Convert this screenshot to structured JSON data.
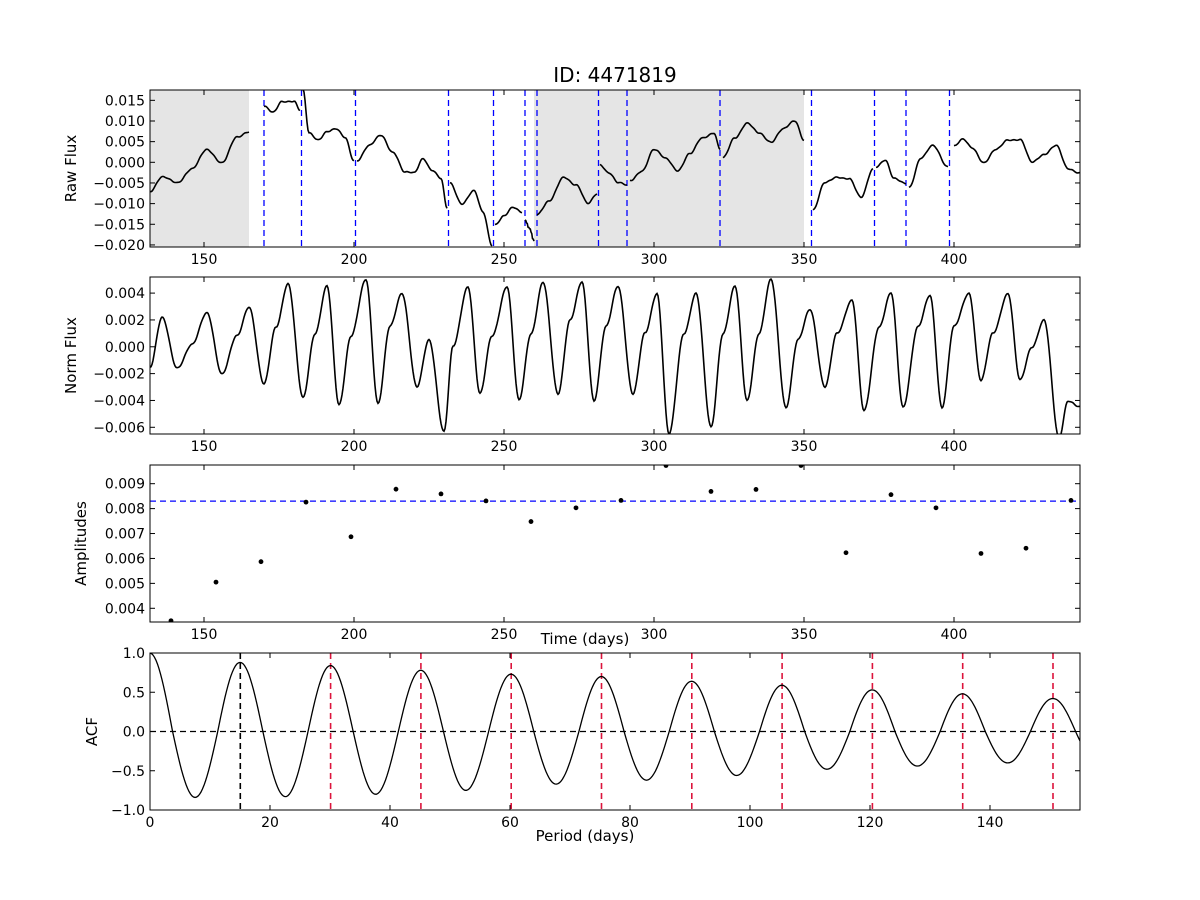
{
  "figure": {
    "title": "ID: 4471819"
  },
  "chart_data": [
    {
      "id": "raw",
      "type": "line",
      "title": "ID: 4471819",
      "xlabel": "",
      "ylabel": "Raw Flux",
      "xlim": [
        132,
        442
      ],
      "ylim": [
        -0.0205,
        0.0175
      ],
      "xticks": [
        150,
        200,
        250,
        300,
        350,
        400
      ],
      "yticks": [
        -0.02,
        -0.015,
        -0.01,
        -0.005,
        0.0,
        0.005,
        0.01,
        0.015
      ],
      "ytick_decimals": 3,
      "shaded_regions": [
        [
          132,
          165
        ],
        [
          260,
          350
        ]
      ],
      "shade_color": "#e5e5e5",
      "vlines": [
        170,
        182.5,
        200.5,
        231.5,
        246.5,
        257,
        261,
        281.5,
        291,
        322,
        352.5,
        373.5,
        384,
        398.5
      ],
      "vline_color": "#0000ff",
      "line_color": "#000000",
      "series": [
        {
          "x": [
            132,
            136,
            141,
            146,
            151,
            156,
            161,
            165
          ],
          "y": [
            -0.007,
            -0.0035,
            -0.005,
            -0.0015,
            0.003,
            0.0,
            0.006,
            0.0075
          ]
        },
        {
          "x": [
            170,
            173,
            176,
            180,
            182
          ],
          "y": [
            0.0135,
            0.012,
            0.0148,
            0.0148,
            0.0125
          ]
        },
        {
          "x": [
            183,
            185,
            188,
            191,
            194,
            197,
            200
          ],
          "y": [
            0.0175,
            0.007,
            0.0055,
            0.0075,
            0.008,
            0.006,
            0.0005
          ]
        },
        {
          "x": [
            201,
            205,
            209,
            213,
            217,
            220,
            223,
            226,
            229,
            231
          ],
          "y": [
            0.0005,
            0.004,
            0.0065,
            0.0025,
            -0.0025,
            -0.0025,
            0.001,
            -0.002,
            -0.004,
            -0.011
          ]
        },
        {
          "x": [
            232,
            236,
            240,
            243,
            246
          ],
          "y": [
            -0.005,
            -0.01,
            -0.007,
            -0.012,
            -0.02
          ]
        },
        {
          "x": [
            247,
            250,
            253,
            256
          ],
          "y": [
            -0.015,
            -0.013,
            -0.011,
            -0.012
          ]
        },
        {
          "x": [
            257,
            258.5,
            260
          ],
          "y": [
            -0.014,
            -0.016,
            -0.019
          ]
        },
        {
          "x": [
            261,
            265,
            270,
            274,
            278,
            281
          ],
          "y": [
            -0.0125,
            -0.0095,
            -0.0035,
            -0.0055,
            -0.01,
            -0.0075
          ]
        },
        {
          "x": [
            282,
            285,
            288,
            291
          ],
          "y": [
            -0.0005,
            -0.0025,
            -0.005,
            -0.0055
          ]
        },
        {
          "x": [
            292,
            296,
            300,
            304,
            308,
            312,
            316,
            320,
            322
          ],
          "y": [
            -0.0045,
            -0.002,
            0.003,
            0.001,
            -0.002,
            0.002,
            0.006,
            0.007,
            0.003
          ]
        },
        {
          "x": [
            323,
            327,
            331,
            335,
            339,
            343,
            347,
            350
          ],
          "y": [
            0.001,
            0.006,
            0.0095,
            0.007,
            0.005,
            0.008,
            0.01,
            0.0055
          ]
        },
        {
          "x": [
            353,
            357,
            361,
            365,
            369,
            373
          ],
          "y": [
            -0.0115,
            -0.005,
            -0.0035,
            -0.004,
            -0.0085,
            -0.0015
          ]
        },
        {
          "x": [
            374,
            377,
            380,
            384
          ],
          "y": [
            -0.001,
            0.0005,
            -0.004,
            -0.005
          ]
        },
        {
          "x": [
            385,
            389,
            393,
            398
          ],
          "y": [
            -0.006,
            0.001,
            0.004,
            -0.001
          ]
        },
        {
          "x": [
            400,
            403,
            406,
            410,
            414,
            418,
            422,
            426,
            430,
            434,
            438,
            442
          ],
          "y": [
            0.004,
            0.0055,
            0.0035,
            0.0,
            0.003,
            0.0055,
            0.0055,
            0.0,
            0.002,
            0.004,
            -0.0015,
            -0.0025
          ]
        }
      ]
    },
    {
      "id": "norm",
      "type": "line",
      "xlabel": "",
      "ylabel": "Norm Flux",
      "xlim": [
        132,
        442
      ],
      "ylim": [
        -0.0065,
        0.0052
      ],
      "xticks": [
        150,
        200,
        250,
        300,
        350,
        400
      ],
      "yticks": [
        -0.006,
        -0.004,
        -0.002,
        0.0,
        0.002,
        0.004
      ],
      "ytick_decimals": 3,
      "line_color": "#000000",
      "series": [
        {
          "x": [
            132,
            136,
            141,
            146,
            151,
            156,
            161,
            165,
            170,
            174,
            178,
            183,
            187,
            191,
            195,
            199,
            204,
            208,
            212,
            216,
            221,
            225,
            230,
            233,
            238,
            242,
            246,
            251,
            255,
            259,
            263,
            268,
            272,
            276,
            280,
            284,
            288,
            293,
            297,
            301,
            305,
            310,
            314,
            319,
            323,
            327,
            331,
            335,
            339,
            344,
            348,
            352,
            357,
            361,
            366,
            370,
            375,
            379,
            383,
            388,
            392,
            396,
            400,
            405,
            409,
            413,
            418,
            422,
            426,
            430,
            435,
            438,
            442
          ],
          "y": [
            -0.0015,
            0.0022,
            -0.0016,
            0.0002,
            0.0025,
            -0.002,
            0.0008,
            0.003,
            -0.0028,
            0.0015,
            0.0047,
            -0.0038,
            0.001,
            0.0045,
            -0.0043,
            0.0008,
            0.005,
            -0.0042,
            0.0015,
            0.004,
            -0.003,
            0.0005,
            -0.0063,
            0.0,
            0.0045,
            -0.0035,
            0.0008,
            0.0045,
            -0.004,
            0.001,
            0.0048,
            -0.0035,
            0.002,
            0.0048,
            -0.004,
            0.0015,
            0.0045,
            -0.0035,
            0.001,
            0.004,
            -0.0065,
            0.001,
            0.004,
            -0.006,
            0.001,
            0.0045,
            -0.004,
            0.001,
            0.005,
            -0.0045,
            0.0005,
            0.0028,
            -0.003,
            0.001,
            0.0035,
            -0.0048,
            0.0015,
            0.004,
            -0.0045,
            0.0015,
            0.0038,
            -0.0045,
            0.0015,
            0.004,
            -0.0025,
            0.001,
            0.004,
            -0.0025,
            0.0,
            0.002,
            -0.0068,
            -0.004,
            -0.0045
          ]
        }
      ]
    },
    {
      "id": "amp",
      "type": "scatter",
      "xlabel": "Time (days)",
      "ylabel": "Amplitudes",
      "xlim": [
        132,
        442
      ],
      "ylim": [
        0.00345,
        0.00975
      ],
      "xticks": [
        150,
        200,
        250,
        300,
        350,
        400
      ],
      "yticks": [
        0.004,
        0.005,
        0.006,
        0.007,
        0.008,
        0.009
      ],
      "ytick_decimals": 3,
      "hline": 0.0083,
      "hline_color": "#0000ff",
      "marker_color": "#000000",
      "x": [
        139,
        154,
        169,
        184,
        199,
        214,
        229,
        244,
        259,
        274,
        289,
        304,
        319,
        334,
        349,
        364,
        379,
        394,
        409,
        424,
        439
      ],
      "y": [
        0.0035,
        0.00505,
        0.00587,
        0.00826,
        0.00687,
        0.00878,
        0.00859,
        0.00831,
        0.00748,
        0.00803,
        0.00833,
        0.00973,
        0.00869,
        0.00877,
        0.00973,
        0.00623,
        0.00856,
        0.00803,
        0.0062,
        0.00641,
        0.00833
      ]
    },
    {
      "id": "acf",
      "type": "line",
      "xlabel": "Period (days)",
      "ylabel": "ACF",
      "xlim": [
        0,
        155
      ],
      "ylim": [
        -1.0,
        1.0
      ],
      "xticks": [
        0,
        20,
        40,
        60,
        80,
        100,
        120,
        140
      ],
      "yticks": [
        -1.0,
        -0.5,
        0.0,
        0.5,
        1.0
      ],
      "ytick_decimals": 1,
      "hline": 0.0,
      "hline_color": "#000000",
      "line_color": "#000000",
      "period": 15.05,
      "peak_lines": [
        15.05,
        30.1,
        45.15,
        60.2,
        75.25,
        90.3,
        105.35,
        120.4,
        135.45,
        150.5
      ],
      "first_peak_color": "#000000",
      "peak_line_color": "#dc143c",
      "peak_values": [
        0.88,
        0.84,
        0.78,
        0.73,
        0.7,
        0.64,
        0.59,
        0.53,
        0.48,
        0.42
      ],
      "trough_values": [
        -0.84,
        -0.83,
        -0.8,
        -0.75,
        -0.67,
        -0.62,
        -0.56,
        -0.48,
        -0.44,
        -0.4
      ]
    }
  ]
}
